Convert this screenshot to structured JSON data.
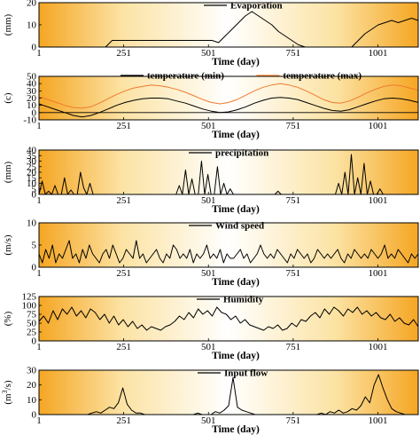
{
  "chart_data": [
    {
      "type": "line",
      "series": [
        {
          "name": "Evaporation",
          "values": [
            0,
            0,
            0,
            0,
            0,
            0,
            0,
            0,
            0,
            0,
            0,
            3,
            3,
            3,
            3,
            3,
            3,
            3,
            3,
            3,
            3,
            3,
            3,
            3,
            3,
            3,
            3,
            2,
            5,
            8,
            11,
            14,
            16,
            14,
            12,
            10,
            7,
            5,
            3,
            1,
            0,
            0,
            0,
            0,
            0,
            0,
            0,
            0,
            3,
            6,
            8,
            10,
            11,
            12,
            11,
            12,
            13,
            12
          ]
        },
        {
          "name": "",
          "values": []
        }
      ],
      "legend": [
        "Evaporation"
      ],
      "colors": [
        "#000000"
      ],
      "xlabel": "Time (day)",
      "ylabel": "(mm)",
      "xticks": [
        "1",
        "251",
        "501",
        "751",
        "1001"
      ],
      "yticks": [
        "0",
        "10",
        "20"
      ],
      "ylim": [
        0,
        20
      ],
      "xlim": [
        1,
        1120
      ]
    },
    {
      "type": "line",
      "series": [
        {
          "name": "temperature (min)",
          "values": [
            12,
            8,
            4,
            0,
            -4,
            -6,
            -4,
            0,
            5,
            10,
            14,
            17,
            19,
            20,
            20,
            19,
            16,
            13,
            9,
            5,
            2,
            0,
            1,
            4,
            8,
            13,
            17,
            20,
            21,
            20,
            18,
            14,
            10,
            6,
            3,
            2,
            4,
            8,
            12,
            16,
            19,
            20,
            19,
            17,
            14
          ]
        },
        {
          "name": "temperature (max)",
          "values": [
            22,
            18,
            14,
            10,
            7,
            6,
            8,
            13,
            19,
            25,
            30,
            34,
            36,
            38,
            37,
            35,
            32,
            28,
            23,
            18,
            14,
            12,
            14,
            18,
            24,
            30,
            35,
            38,
            40,
            38,
            35,
            30,
            24,
            18,
            14,
            13,
            16,
            21,
            27,
            32,
            36,
            38,
            37,
            34,
            31
          ]
        }
      ],
      "legend": [
        "temperature (min)",
        "temperature (max)"
      ],
      "colors": [
        "#000000",
        "#f07a2e"
      ],
      "xlabel": "Time (day)",
      "ylabel": "(c)",
      "xticks": [
        "1",
        "251",
        "501",
        "751",
        "1001"
      ],
      "yticks": [
        "-10",
        "0",
        "10",
        "20",
        "30",
        "40",
        "50"
      ],
      "ylim": [
        -10,
        50
      ],
      "xlim": [
        1,
        1120
      ]
    },
    {
      "type": "line",
      "series": [
        {
          "name": "precipitation",
          "values": [
            0,
            12,
            0,
            3,
            0,
            8,
            0,
            0,
            15,
            0,
            4,
            0,
            0,
            20,
            6,
            0,
            10,
            0,
            0,
            0,
            0,
            0,
            0,
            0,
            0,
            0,
            0,
            0,
            0,
            0,
            0,
            0,
            0,
            0,
            0,
            0,
            0,
            0,
            0,
            0,
            0,
            0,
            0,
            0,
            8,
            0,
            22,
            0,
            14,
            0,
            0,
            30,
            0,
            18,
            0,
            0,
            25,
            0,
            10,
            0,
            5,
            0,
            0,
            0,
            0,
            0,
            0,
            0,
            0,
            0,
            0,
            0,
            0,
            0,
            0,
            3,
            0,
            0,
            0,
            0,
            0,
            0,
            0,
            0,
            0,
            0,
            0,
            0,
            0,
            0,
            0,
            0,
            0,
            0,
            10,
            0,
            20,
            0,
            36,
            0,
            15,
            0,
            28,
            0,
            12,
            0,
            0,
            5,
            0,
            0,
            0,
            0,
            0,
            0,
            0,
            0,
            0,
            0,
            0,
            0
          ]
        }
      ],
      "legend": [
        "precipitation"
      ],
      "colors": [
        "#000000"
      ],
      "xlabel": "Time (day)",
      "ylabel": "(mm)",
      "xticks": [
        "1",
        "251",
        "501",
        "751",
        "1001"
      ],
      "yticks": [
        "0",
        "5",
        "10",
        "15",
        "20",
        "25",
        "30",
        "35",
        "40"
      ],
      "ylim": [
        0,
        40
      ],
      "xlim": [
        1,
        1120
      ]
    },
    {
      "type": "line",
      "series": [
        {
          "name": "Wind speed",
          "values": [
            3,
            1,
            4,
            2,
            5,
            1,
            3,
            2,
            4,
            6,
            2,
            3,
            1,
            4,
            2,
            5,
            3,
            2,
            1,
            3,
            4,
            2,
            5,
            3,
            1,
            2,
            4,
            3,
            2,
            6,
            2,
            3,
            1,
            2,
            3,
            4,
            2,
            1,
            3,
            2,
            5,
            4,
            2,
            3,
            2,
            4,
            1,
            3,
            2,
            3,
            5,
            2,
            3,
            2,
            4,
            1,
            3,
            2,
            2,
            3,
            4,
            2,
            3,
            1,
            2,
            3,
            5,
            3,
            2,
            3,
            2,
            4,
            3,
            2,
            1,
            3,
            2,
            4,
            3,
            2,
            3,
            1,
            2,
            4,
            3,
            2,
            3,
            2,
            3,
            4,
            2,
            1,
            3,
            2,
            4,
            3,
            2,
            3,
            2,
            4,
            3,
            2,
            3,
            5,
            2,
            3,
            2,
            4,
            3,
            2,
            1,
            3,
            2,
            3
          ]
        }
      ],
      "legend": [
        "Wind speed"
      ],
      "colors": [
        "#000000"
      ],
      "xlabel": "Time (day)",
      "ylabel": "(m/s)",
      "xticks": [
        "1",
        "251",
        "501",
        "751",
        "1001"
      ],
      "yticks": [
        "0",
        "5",
        "10"
      ],
      "ylim": [
        0,
        10
      ],
      "xlim": [
        1,
        1120
      ]
    },
    {
      "type": "line",
      "series": [
        {
          "name": "Humidity",
          "values": [
            55,
            70,
            50,
            85,
            60,
            90,
            75,
            95,
            70,
            85,
            65,
            90,
            80,
            60,
            75,
            50,
            70,
            45,
            60,
            40,
            55,
            35,
            45,
            30,
            40,
            35,
            30,
            40,
            45,
            55,
            70,
            60,
            80,
            65,
            90,
            75,
            85,
            70,
            95,
            80,
            75,
            60,
            70,
            50,
            60,
            45,
            40,
            35,
            30,
            40,
            35,
            45,
            30,
            35,
            50,
            40,
            60,
            55,
            70,
            80,
            65,
            90,
            75,
            95,
            85,
            70,
            90,
            80,
            95,
            75,
            85,
            70,
            80,
            65,
            60,
            75,
            55,
            65,
            50,
            45,
            60,
            40
          ]
        }
      ],
      "legend": [
        "Humidity"
      ],
      "colors": [
        "#000000"
      ],
      "xlabel": "Time (day)",
      "ylabel": "(%)",
      "xticks": [
        "1",
        "251",
        "501",
        "751",
        "1001"
      ],
      "yticks": [
        "0",
        "25",
        "50",
        "75",
        "100",
        "125"
      ],
      "ylim": [
        0,
        125
      ],
      "xlim": [
        1,
        1120
      ]
    },
    {
      "type": "line",
      "series": [
        {
          "name": "Input flow",
          "values": [
            0,
            0,
            0,
            0,
            0,
            0,
            0,
            0,
            0,
            0,
            0,
            0,
            1,
            2,
            1,
            3,
            5,
            4,
            8,
            18,
            7,
            3,
            1,
            1,
            0,
            0,
            0,
            0,
            0,
            0,
            0,
            0,
            0,
            0,
            0,
            0,
            1,
            0,
            0,
            0,
            2,
            1,
            3,
            6,
            25,
            5,
            3,
            2,
            1,
            0,
            0,
            0,
            0,
            0,
            0,
            0,
            0,
            0,
            0,
            0,
            0,
            0,
            0,
            0,
            1,
            0,
            2,
            1,
            3,
            1,
            2,
            4,
            3,
            6,
            12,
            8,
            20,
            27,
            18,
            10,
            4,
            2,
            1,
            0,
            0,
            0,
            0
          ]
        }
      ],
      "legend": [
        "Input flow"
      ],
      "colors": [
        "#000000"
      ],
      "xlabel": "Time (day)",
      "ylabel": "(m^3/s)",
      "xticks": [
        "1",
        "251",
        "501",
        "751",
        "1001"
      ],
      "yticks": [
        "0",
        "10",
        "20",
        "30"
      ],
      "ylim": [
        0,
        30
      ],
      "xlim": [
        1,
        1120
      ]
    }
  ]
}
